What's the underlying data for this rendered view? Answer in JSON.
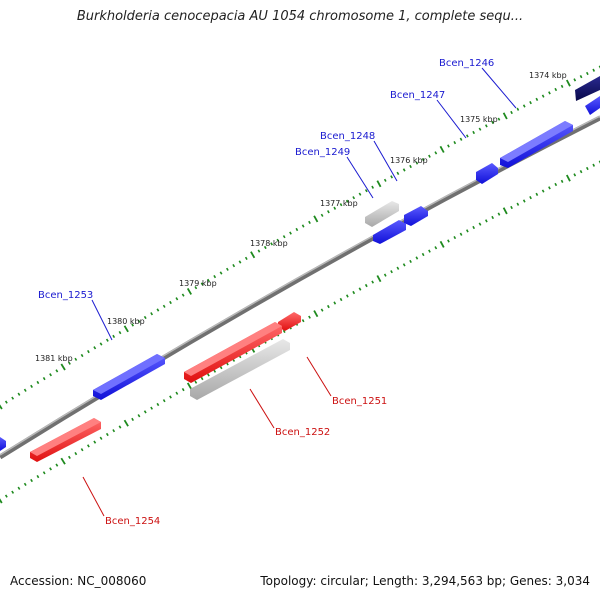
{
  "title": "Burkholderia cenocepacia AU 1054 chromosome 1, complete sequ...",
  "footer": {
    "accession": "Accession: NC_008060",
    "summary": "Topology: circular; Length: 3,294,563 bp; Genes: 3,034"
  },
  "kbp_labels": [
    "1374 kbp",
    "1375 kbp",
    "1376 kbp",
    "1377 kbp",
    "1378 kbp",
    "1379 kbp",
    "1380 kbp",
    "1381 kbp"
  ],
  "genes": {
    "forward": [
      "Bcen_1246",
      "Bcen_1247",
      "Bcen_1248",
      "Bcen_1249",
      "Bcen_1253"
    ],
    "reverse": [
      "Bcen_1251",
      "Bcen_1252",
      "Bcen_1254"
    ]
  },
  "colors": {
    "forward_gene": "#1a1aee",
    "forward_gene_dark": "#0c0c7a",
    "reverse_gene": "#ee1515",
    "pseudo_gene": "#b8b8b8",
    "backbone": "#808080",
    "tick": "#1e8a1e",
    "forward_label": "#1a1ad0",
    "reverse_label": "#cc1111"
  }
}
